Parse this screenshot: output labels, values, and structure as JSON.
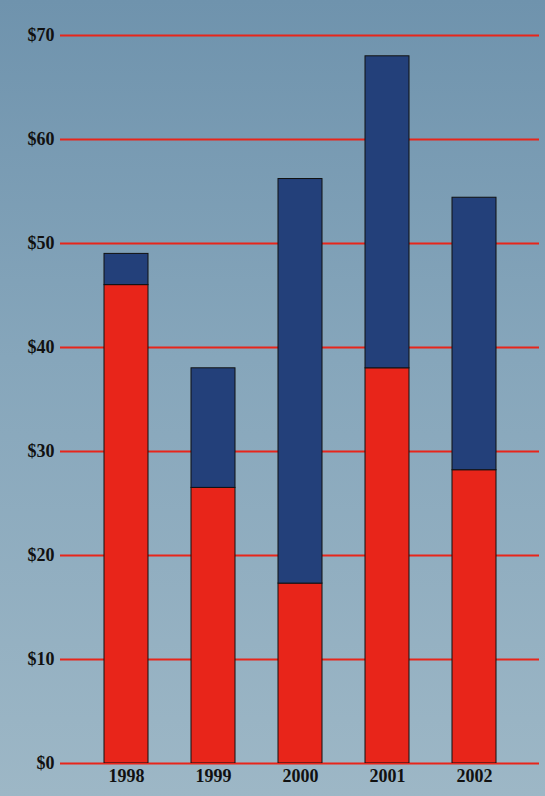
{
  "chart_data": {
    "type": "bar",
    "stacked": true,
    "categories": [
      "1998",
      "1999",
      "2000",
      "2001",
      "2002"
    ],
    "series": [
      {
        "color": "#e8251a",
        "values": [
          46,
          26.5,
          17.3,
          38,
          28.2
        ]
      },
      {
        "color": "#23407a",
        "values": [
          3,
          11.5,
          38.9,
          30,
          26.2
        ]
      }
    ],
    "ylim": [
      0,
      70
    ],
    "yticks": [
      {
        "value": 0,
        "label": "$0"
      },
      {
        "value": 10,
        "label": "$10"
      },
      {
        "value": 20,
        "label": "$20"
      },
      {
        "value": 30,
        "label": "$30"
      },
      {
        "value": 40,
        "label": "$40"
      },
      {
        "value": 50,
        "label": "$50"
      },
      {
        "value": 60,
        "label": "$60"
      },
      {
        "value": 70,
        "label": "$70"
      }
    ],
    "grid": true
  }
}
